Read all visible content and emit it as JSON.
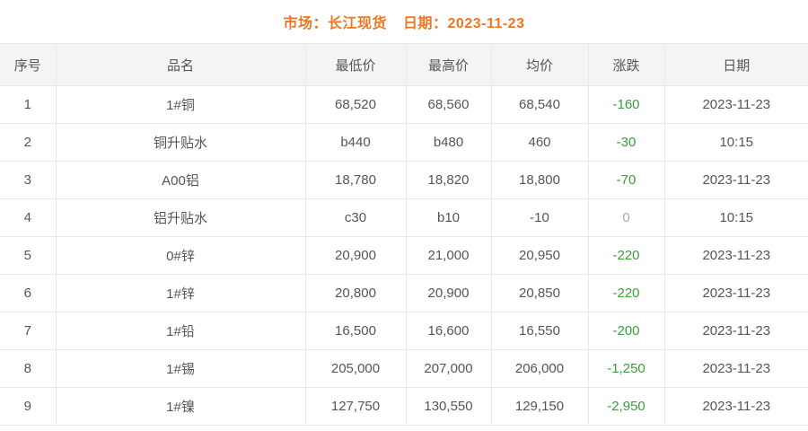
{
  "header": {
    "market_title": "市场：长江现货",
    "date_title": "日期：2023-11-23"
  },
  "table": {
    "columns": [
      "序号",
      "品名",
      "最低价",
      "最高价",
      "均价",
      "涨跌",
      "日期"
    ],
    "rows": [
      {
        "no": "1",
        "name": "1#铜",
        "low": "68,520",
        "high": "68,560",
        "avg": "68,540",
        "change": "-160",
        "change_tone": "down",
        "date": "2023-11-23"
      },
      {
        "no": "2",
        "name": "铜升贴水",
        "low": "b440",
        "high": "b480",
        "avg": "460",
        "change": "-30",
        "change_tone": "down",
        "date": "10:15"
      },
      {
        "no": "3",
        "name": "A00铝",
        "low": "18,780",
        "high": "18,820",
        "avg": "18,800",
        "change": "-70",
        "change_tone": "down",
        "date": "2023-11-23"
      },
      {
        "no": "4",
        "name": "铝升贴水",
        "low": "c30",
        "high": "b10",
        "avg": "-10",
        "change": "0",
        "change_tone": "flat",
        "date": "10:15"
      },
      {
        "no": "5",
        "name": "0#锌",
        "low": "20,900",
        "high": "21,000",
        "avg": "20,950",
        "change": "-220",
        "change_tone": "down",
        "date": "2023-11-23"
      },
      {
        "no": "6",
        "name": "1#锌",
        "low": "20,800",
        "high": "20,900",
        "avg": "20,850",
        "change": "-220",
        "change_tone": "down",
        "date": "2023-11-23"
      },
      {
        "no": "7",
        "name": "1#铅",
        "low": "16,500",
        "high": "16,600",
        "avg": "16,550",
        "change": "-200",
        "change_tone": "down",
        "date": "2023-11-23"
      },
      {
        "no": "8",
        "name": "1#锡",
        "low": "205,000",
        "high": "207,000",
        "avg": "206,000",
        "change": "-1,250",
        "change_tone": "down",
        "date": "2023-11-23"
      },
      {
        "no": "9",
        "name": "1#镍",
        "low": "127,750",
        "high": "130,550",
        "avg": "129,150",
        "change": "-2,950",
        "change_tone": "down",
        "date": "2023-11-23"
      }
    ]
  },
  "colors": {
    "accent_orange": "#ef7622",
    "change_down_green": "#3d9c3d",
    "change_zero_gray": "#aaaaaa",
    "border_gray": "#e8e8e8",
    "header_bg": "#f4f4f4",
    "text_gray": "#555555"
  }
}
